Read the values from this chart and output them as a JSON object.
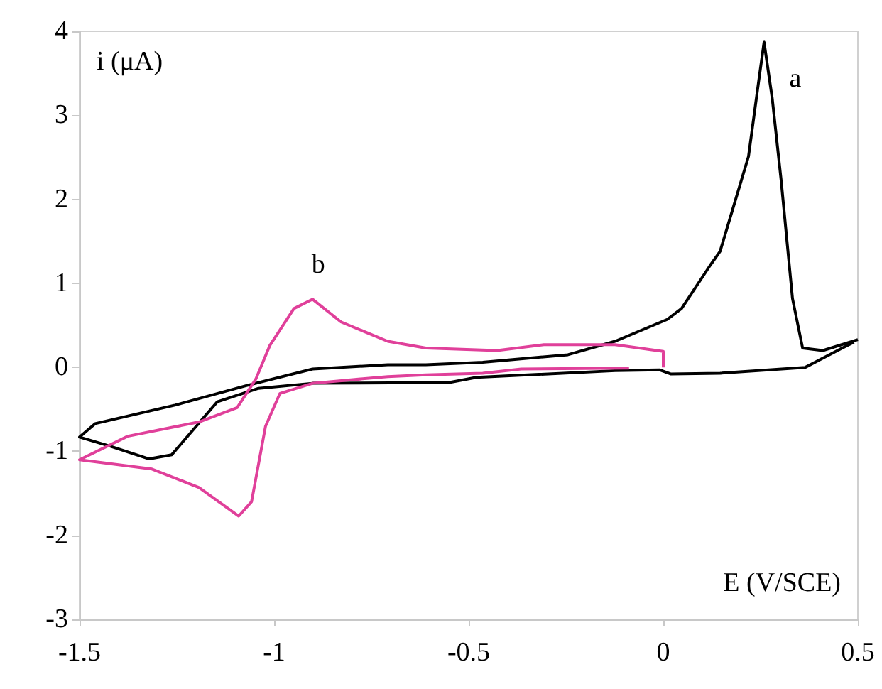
{
  "chart_data": {
    "type": "line",
    "xlabel": "E (V/SCE)",
    "ylabel": "i (μA)",
    "xlim": [
      -1.5,
      0.5
    ],
    "xticks": [
      -1.5,
      -1,
      -0.5,
      0,
      0.5
    ],
    "ylim": [
      -3,
      4
    ],
    "yticks": [
      -3,
      -2,
      -1,
      0,
      1,
      2,
      3,
      4
    ],
    "grid": false,
    "series": [
      {
        "color": "#000000",
        "x": [
          0.5,
          0.41,
          0.358,
          0.332,
          0.303,
          0.28,
          0.259,
          0.245,
          0.219,
          0.146,
          0.12,
          0.047,
          0.01,
          -0.124,
          -0.245,
          -0.464,
          -0.61,
          -0.708,
          -0.901,
          -1.073,
          -1.255,
          -1.46,
          -1.5,
          -1.42,
          -1.321,
          -1.263,
          -1.2,
          -1.146,
          -1.04,
          -0.901,
          -0.55,
          -0.48,
          -0.124,
          -0.01,
          0.02,
          0.146,
          0.365,
          0.46,
          0.49
        ],
        "values": [
          0.33,
          0.2,
          0.23,
          0.82,
          2.22,
          3.2,
          3.87,
          3.4,
          2.51,
          1.38,
          1.21,
          0.7,
          0.57,
          0.31,
          0.15,
          0.06,
          0.03,
          0.03,
          -0.02,
          -0.22,
          -0.45,
          -0.67,
          -0.83,
          -0.94,
          -1.09,
          -1.04,
          -0.7,
          -0.41,
          -0.25,
          -0.19,
          -0.18,
          -0.12,
          -0.04,
          -0.03,
          -0.08,
          -0.07,
          0.0,
          0.23,
          0.3
        ]
      },
      {
        "color": "#e0409a",
        "x": [
          0,
          0,
          -0.124,
          -0.307,
          -0.427,
          -0.61,
          -0.708,
          -0.828,
          -0.901,
          -0.949,
          -1.011,
          -1.047,
          -1.095,
          -1.193,
          -1.376,
          -1.5,
          -1.314,
          -1.193,
          -1.091,
          -1.058,
          -1.022,
          -0.985,
          -0.901,
          -0.708,
          -0.61,
          -0.464,
          -0.365,
          -0.088
        ],
        "values": [
          0.0,
          0.19,
          0.27,
          0.27,
          0.2,
          0.23,
          0.31,
          0.54,
          0.81,
          0.7,
          0.26,
          -0.14,
          -0.48,
          -0.65,
          -0.82,
          -1.1,
          -1.21,
          -1.43,
          -1.77,
          -1.6,
          -0.7,
          -0.31,
          -0.19,
          -0.11,
          -0.09,
          -0.07,
          -0.02,
          -0.01
        ]
      }
    ],
    "annotations": [
      "a",
      "b"
    ]
  }
}
